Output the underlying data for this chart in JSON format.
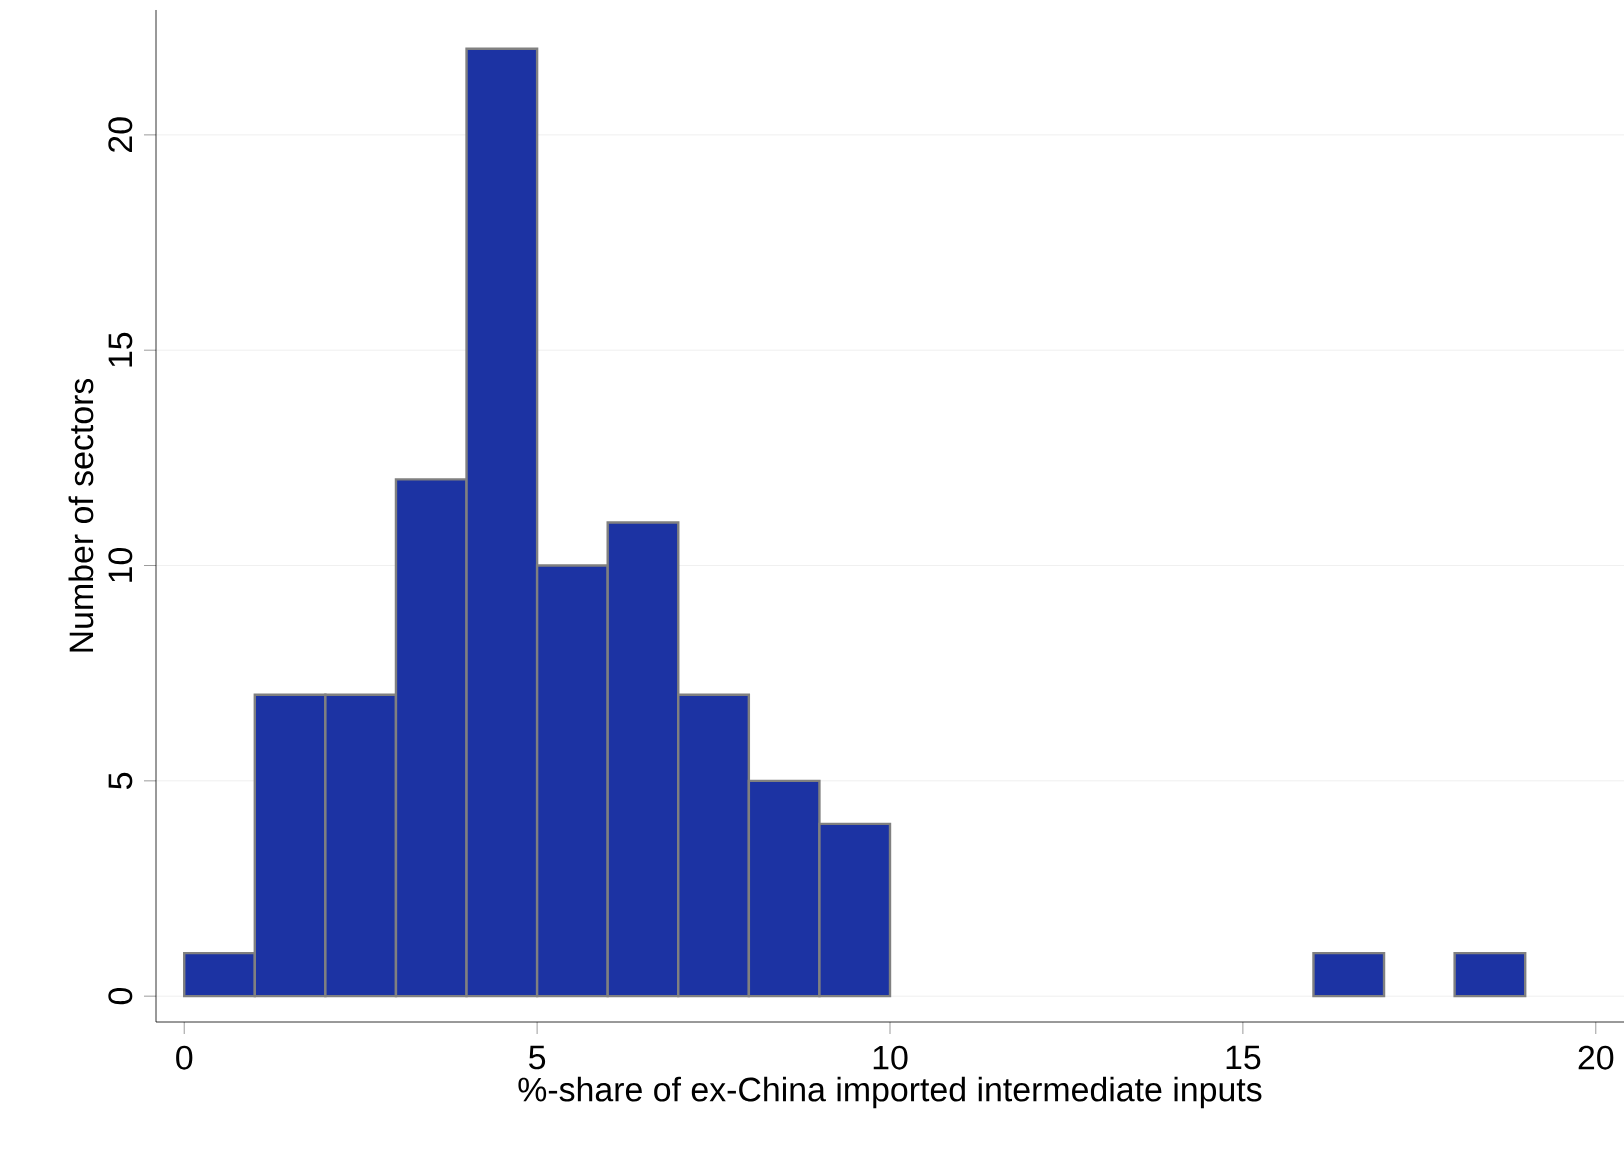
{
  "chart_data": {
    "type": "histogram",
    "xlabel": "%-share of ex-China imported intermediate inputs",
    "ylabel": "Number of sectors",
    "bins": [
      0,
      1,
      2,
      3,
      4,
      5,
      6,
      7,
      8,
      9,
      10,
      11,
      12,
      13,
      14,
      15,
      16,
      17,
      18,
      19
    ],
    "values": [
      1,
      7,
      7,
      12,
      22,
      10,
      11,
      7,
      5,
      4,
      0,
      0,
      0,
      0,
      0,
      0,
      1,
      0,
      1
    ],
    "color": "#1c33a3",
    "xlim": [
      -0.4,
      20.4
    ],
    "ylim": [
      -0.6,
      22.9
    ],
    "xticks": [
      0,
      5,
      10,
      15,
      20
    ],
    "yticks": [
      0,
      5,
      10,
      15,
      20
    ],
    "grid": "y"
  }
}
